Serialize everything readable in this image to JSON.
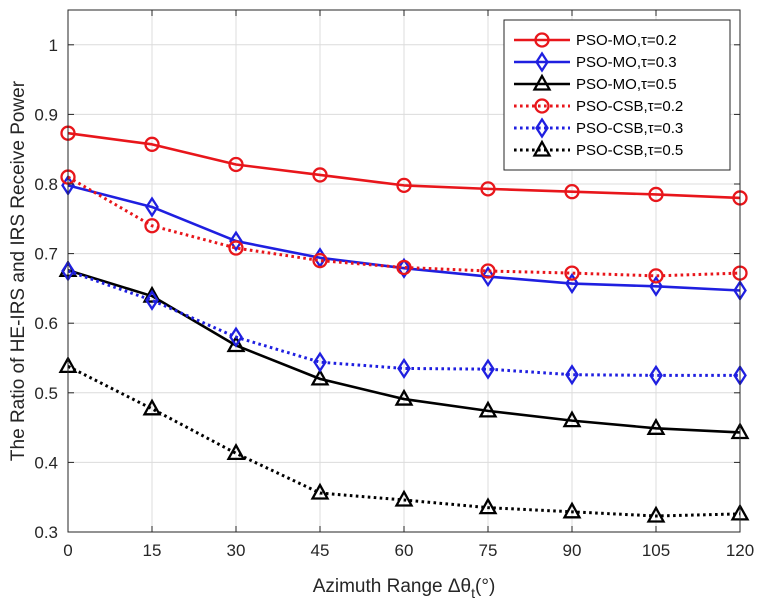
{
  "chart_data": {
    "type": "line",
    "xlabel": "Azimuth Range Δθ",
    "xlabel_sub": "t",
    "xlabel_unit": "(°)",
    "ylabel": "The Ratio of HE-IRS and IRS Receive Power",
    "x": [
      0,
      15,
      30,
      45,
      60,
      75,
      90,
      105,
      120
    ],
    "x_ticks": [
      "0",
      "15",
      "30",
      "45",
      "60",
      "75",
      "90",
      "105",
      "120"
    ],
    "y_ticks": [
      "0.3",
      "0.4",
      "0.5",
      "0.6",
      "0.7",
      "0.8",
      "0.9",
      "1"
    ],
    "xlim": [
      0,
      120
    ],
    "ylim": [
      0.3,
      1.05
    ],
    "grid": true,
    "legend_position": "top-right",
    "series": [
      {
        "name": "PSO-MO,τ=0.2",
        "color": "#e8161b",
        "style": "solid",
        "marker": "circle",
        "values": [
          0.873,
          0.857,
          0.828,
          0.813,
          0.798,
          0.793,
          0.789,
          0.785,
          0.78
        ]
      },
      {
        "name": "PSO-MO,τ=0.3",
        "color": "#1f1fe0",
        "style": "solid",
        "marker": "diamond",
        "values": [
          0.798,
          0.767,
          0.718,
          0.694,
          0.679,
          0.667,
          0.657,
          0.653,
          0.647
        ]
      },
      {
        "name": "PSO-MO,τ=0.5",
        "color": "#000000",
        "style": "solid",
        "marker": "triangle",
        "values": [
          0.676,
          0.639,
          0.568,
          0.52,
          0.491,
          0.474,
          0.46,
          0.449,
          0.443
        ]
      },
      {
        "name": "PSO-CSB,τ=0.2",
        "color": "#e8161b",
        "style": "dotted",
        "marker": "circle",
        "values": [
          0.81,
          0.74,
          0.708,
          0.69,
          0.68,
          0.675,
          0.672,
          0.668,
          0.672
        ]
      },
      {
        "name": "PSO-CSB,τ=0.3",
        "color": "#1f1fe0",
        "style": "dotted",
        "marker": "diamond",
        "values": [
          0.675,
          0.633,
          0.58,
          0.544,
          0.535,
          0.534,
          0.526,
          0.525,
          0.525
        ]
      },
      {
        "name": "PSO-CSB,τ=0.5",
        "color": "#000000",
        "style": "dotted",
        "marker": "triangle",
        "values": [
          0.538,
          0.477,
          0.413,
          0.356,
          0.346,
          0.335,
          0.329,
          0.323,
          0.326
        ]
      }
    ]
  }
}
